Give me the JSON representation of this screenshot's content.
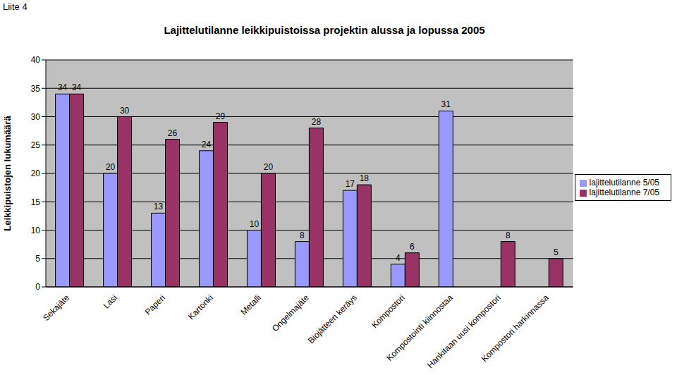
{
  "chart_data": {
    "type": "bar",
    "title": "Lajittelutilanne leikkipuistoissa projektin alussa ja lopussa 2005",
    "annotations": [
      "Liite 4"
    ],
    "y_label": "Leikkipuistojen lukumäärä",
    "categories": [
      "Sekajäte",
      "Lasi",
      "Paperi",
      "Kartonki",
      "Metalli",
      "Ongelmajäte",
      "Biojätteen keräys",
      "Kompostori",
      "Kompostointi kiinnostaa",
      "Hankitaan uusi kompostori",
      "Kompostori harkinnassa"
    ],
    "series": [
      {
        "name": "lajittelutilanne 5/05",
        "color": "#9999ff",
        "values": [
          34,
          20,
          13,
          24,
          10,
          8,
          17,
          4,
          31,
          null,
          null
        ]
      },
      {
        "name": "lajittelutilanne 7/05",
        "color": "#993366",
        "values": [
          34,
          30,
          26,
          29,
          20,
          28,
          18,
          6,
          null,
          8,
          5
        ]
      }
    ],
    "ylim": [
      0,
      40
    ],
    "yticks": [
      0,
      5,
      10,
      15,
      20,
      25,
      30,
      35,
      40
    ],
    "grid": true,
    "data_labels": true,
    "legend": "right"
  }
}
